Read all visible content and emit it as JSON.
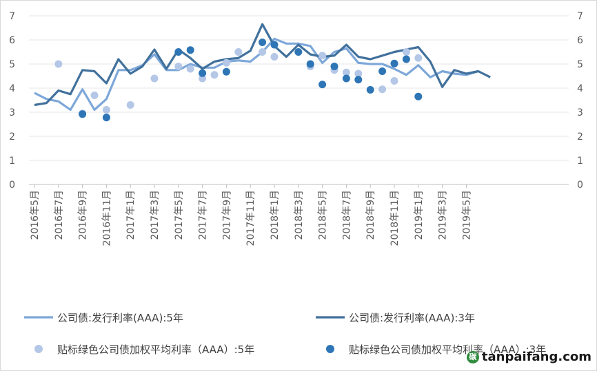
{
  "chart_data": {
    "type": "line",
    "ylim": [
      0,
      7
    ],
    "yticks": [
      "0",
      "1",
      "2",
      "3",
      "4",
      "5",
      "6",
      "7"
    ],
    "x_months": [
      "2016-05",
      "2016-06",
      "2016-07",
      "2016-08",
      "2016-09",
      "2016-10",
      "2016-11",
      "2016-12",
      "2017-01",
      "2017-02",
      "2017-03",
      "2017-04",
      "2017-05",
      "2017-06",
      "2017-07",
      "2017-08",
      "2017-09",
      "2017-10",
      "2017-11",
      "2017-12",
      "2018-01",
      "2018-02",
      "2018-03",
      "2018-04",
      "2018-05",
      "2018-06",
      "2018-07",
      "2018-08",
      "2018-09",
      "2018-10",
      "2018-11",
      "2018-12",
      "2019-01",
      "2019-02",
      "2019-03",
      "2019-04",
      "2019-05",
      "2019-06"
    ],
    "tick_labels": [
      "2016年5月",
      "2016年7月",
      "2016年9月",
      "2016年11月",
      "2017年1月",
      "2017年3月",
      "2017年5月",
      "2017年7月",
      "2017年9月",
      "2017年11月",
      "2018年1月",
      "2018年3月",
      "2018年5月",
      "2018年7月",
      "2018年9月",
      "2018年11月",
      "2019年1月",
      "2019年3月",
      "2019年5月"
    ],
    "series": [
      {
        "name": "公司债:发行利率(AAA):5年",
        "kind": "line",
        "color": "#7da7d9",
        "points": [
          [
            "2016-05",
            3.8
          ],
          [
            "2016-06",
            3.55
          ],
          [
            "2016-07",
            3.45
          ],
          [
            "2016-08",
            3.1
          ],
          [
            "2016-09",
            3.95
          ],
          [
            "2016-10",
            3.1
          ],
          [
            "2016-11",
            3.55
          ],
          [
            "2016-12",
            4.75
          ],
          [
            "2017-01",
            4.75
          ],
          [
            "2017-02",
            4.95
          ],
          [
            "2017-03",
            5.4
          ],
          [
            "2017-04",
            4.75
          ],
          [
            "2017-05",
            4.75
          ],
          [
            "2017-06",
            5.0
          ],
          [
            "2017-07",
            4.85
          ],
          [
            "2017-08",
            4.85
          ],
          [
            "2017-09",
            5.1
          ],
          [
            "2017-10",
            5.15
          ],
          [
            "2017-11",
            5.1
          ],
          [
            "2017-12",
            5.5
          ],
          [
            "2018-01",
            6.05
          ],
          [
            "2018-02",
            5.85
          ],
          [
            "2018-03",
            5.85
          ],
          [
            "2018-04",
            5.75
          ],
          [
            "2018-05",
            5.05
          ],
          [
            "2018-06",
            5.5
          ],
          [
            "2018-07",
            5.65
          ],
          [
            "2018-08",
            5.05
          ],
          [
            "2018-09",
            5.0
          ],
          [
            "2018-10",
            5.0
          ],
          [
            "2018-11",
            4.8
          ],
          [
            "2018-12",
            4.55
          ],
          [
            "2019-01",
            4.95
          ],
          [
            "2019-02",
            4.45
          ],
          [
            "2019-03",
            4.7
          ],
          [
            "2019-04",
            4.6
          ],
          [
            "2019-05",
            4.55
          ],
          [
            "2019-06",
            4.7
          ]
        ]
      },
      {
        "name": "公司债:发行利率(AAA):3年",
        "kind": "line",
        "color": "#41719c",
        "points": [
          [
            "2016-05",
            3.3
          ],
          [
            "2016-06",
            3.38
          ],
          [
            "2016-07",
            3.9
          ],
          [
            "2016-08",
            3.75
          ],
          [
            "2016-09",
            4.75
          ],
          [
            "2016-10",
            4.7
          ],
          [
            "2016-11",
            4.2
          ],
          [
            "2016-12",
            5.2
          ],
          [
            "2017-01",
            4.6
          ],
          [
            "2017-02",
            4.9
          ],
          [
            "2017-03",
            5.6
          ],
          [
            "2017-04",
            4.8
          ],
          [
            "2017-05",
            5.6
          ],
          [
            "2017-06",
            5.25
          ],
          [
            "2017-07",
            4.8
          ],
          [
            "2017-08",
            5.1
          ],
          [
            "2017-09",
            5.2
          ],
          [
            "2017-10",
            5.25
          ],
          [
            "2017-11",
            5.55
          ],
          [
            "2017-12",
            6.65
          ],
          [
            "2018-01",
            5.75
          ],
          [
            "2018-02",
            5.3
          ],
          [
            "2018-03",
            5.8
          ],
          [
            "2018-04",
            5.4
          ],
          [
            "2018-05",
            5.3
          ],
          [
            "2018-06",
            5.35
          ],
          [
            "2018-07",
            5.8
          ],
          [
            "2018-08",
            5.3
          ],
          [
            "2018-09",
            5.2
          ],
          [
            "2018-10",
            5.35
          ],
          [
            "2018-11",
            5.5
          ],
          [
            "2018-12",
            5.6
          ],
          [
            "2019-01",
            5.7
          ],
          [
            "2019-02",
            5.1
          ],
          [
            "2019-03",
            4.05
          ],
          [
            "2019-04",
            4.75
          ],
          [
            "2019-05",
            4.6
          ],
          [
            "2019-06",
            4.7
          ],
          [
            "2019-07",
            4.45
          ]
        ]
      },
      {
        "name": "贴标绿色公司债加权平均利率（AAA）:5年",
        "kind": "scatter",
        "color": "#b4c7e7",
        "points": [
          [
            "2016-07",
            5.0
          ],
          [
            "2016-09",
            2.95
          ],
          [
            "2016-10",
            3.7
          ],
          [
            "2016-11",
            3.1
          ],
          [
            "2017-01",
            3.3
          ],
          [
            "2017-03",
            4.4
          ],
          [
            "2017-05",
            4.9
          ],
          [
            "2017-06",
            4.8
          ],
          [
            "2017-07",
            4.4
          ],
          [
            "2017-08",
            4.55
          ],
          [
            "2017-09",
            5.05
          ],
          [
            "2017-10",
            5.5
          ],
          [
            "2017-12",
            5.5
          ],
          [
            "2018-01",
            5.3
          ],
          [
            "2018-04",
            4.9
          ],
          [
            "2018-05",
            5.35
          ],
          [
            "2018-06",
            4.75
          ],
          [
            "2018-07",
            4.65
          ],
          [
            "2018-08",
            4.6
          ],
          [
            "2018-10",
            3.95
          ],
          [
            "2018-11",
            4.3
          ],
          [
            "2018-12",
            5.5
          ],
          [
            "2019-01",
            5.25
          ]
        ]
      },
      {
        "name": "贴标绿色公司债加权平均利率（AAA）:3年",
        "kind": "scatter",
        "color": "#2e75b6",
        "points": [
          [
            "2016-09",
            2.92
          ],
          [
            "2016-11",
            2.78
          ],
          [
            "2017-05",
            5.5
          ],
          [
            "2017-06",
            5.58
          ],
          [
            "2017-07",
            4.62
          ],
          [
            "2017-09",
            4.68
          ],
          [
            "2017-12",
            5.9
          ],
          [
            "2018-01",
            5.8
          ],
          [
            "2018-03",
            5.5
          ],
          [
            "2018-04",
            5.0
          ],
          [
            "2018-05",
            4.15
          ],
          [
            "2018-06",
            4.9
          ],
          [
            "2018-07",
            4.4
          ],
          [
            "2018-08",
            4.35
          ],
          [
            "2018-09",
            3.93
          ],
          [
            "2018-10",
            4.7
          ],
          [
            "2018-11",
            5.02
          ],
          [
            "2018-12",
            5.2
          ],
          [
            "2019-01",
            3.65
          ]
        ]
      }
    ]
  },
  "watermark": {
    "text": "tanpaifang.com",
    "badge": "碳"
  }
}
